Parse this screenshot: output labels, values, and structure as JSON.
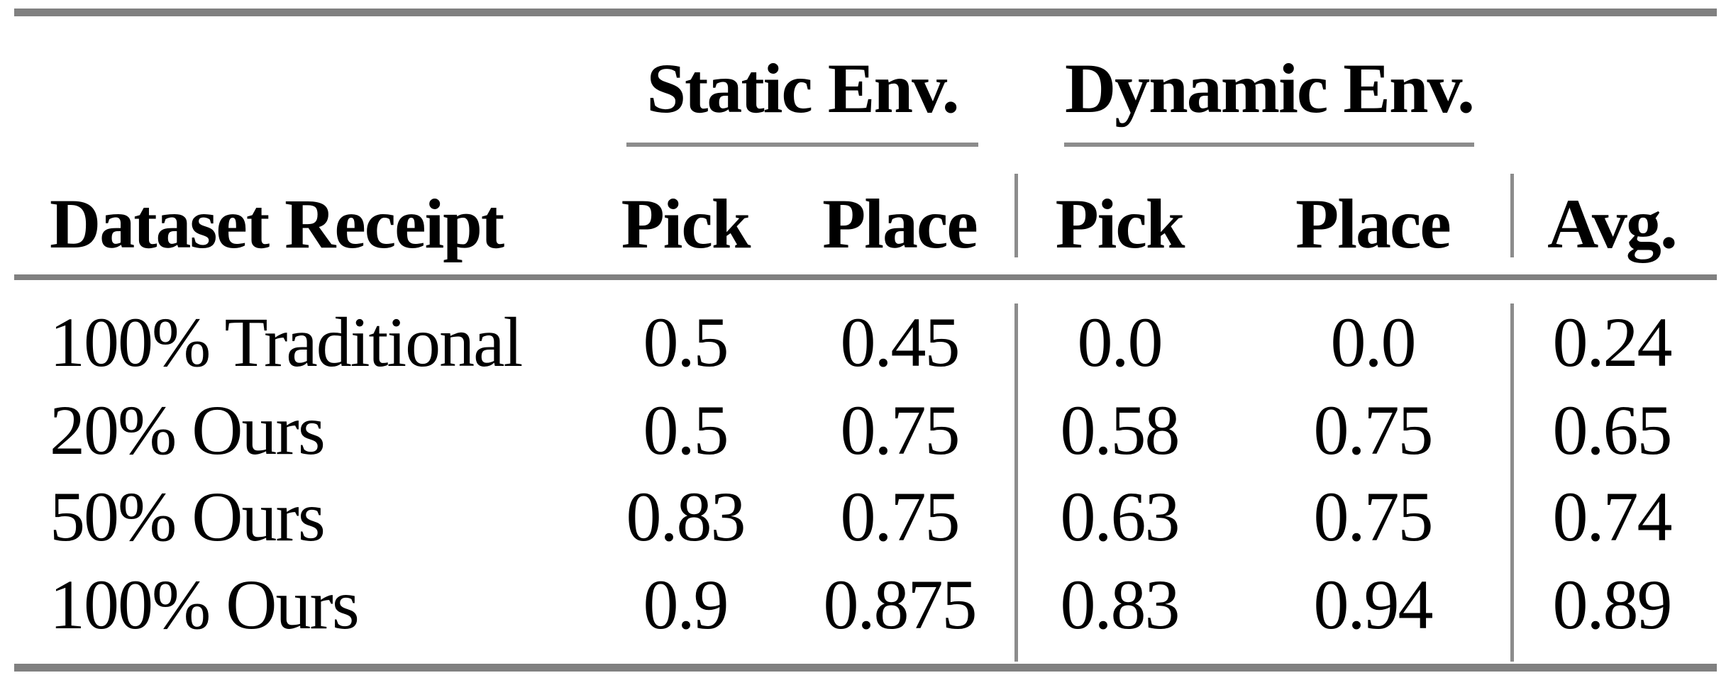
{
  "colors": {
    "background": "#ffffff",
    "text": "#000000",
    "rule_thick": "#808080",
    "rule_thin": "#8c8c8c"
  },
  "table": {
    "row_header_label": "Dataset Receipt",
    "groups": [
      {
        "label": "Static Env.",
        "sub_columns": [
          "Pick",
          "Place"
        ]
      },
      {
        "label": "Dynamic Env.",
        "sub_columns": [
          "Pick",
          "Place"
        ]
      }
    ],
    "avg_label": "Avg.",
    "rows": [
      {
        "label": "100% Traditional",
        "values": [
          "0.5",
          "0.45",
          "0.0",
          "0.0",
          "0.24"
        ]
      },
      {
        "label": "20% Ours",
        "values": [
          "0.5",
          "0.75",
          "0.58",
          "0.75",
          "0.65"
        ]
      },
      {
        "label": "50% Ours",
        "values": [
          "0.83",
          "0.75",
          "0.63",
          "0.75",
          "0.74"
        ]
      },
      {
        "label": "100% Ours",
        "values": [
          "0.9",
          "0.875",
          "0.83",
          "0.94",
          "0.89"
        ]
      }
    ]
  },
  "chart_data": {
    "type": "table",
    "columns": [
      "Dataset Receipt",
      "Static Env. Pick",
      "Static Env. Place",
      "Dynamic Env. Pick",
      "Dynamic Env. Place",
      "Avg."
    ],
    "rows": [
      [
        "100% Traditional",
        0.5,
        0.45,
        0.0,
        0.0,
        0.24
      ],
      [
        "20% Ours",
        0.5,
        0.75,
        0.58,
        0.75,
        0.65
      ],
      [
        "50% Ours",
        0.83,
        0.75,
        0.63,
        0.75,
        0.74
      ],
      [
        "100% Ours",
        0.9,
        0.875,
        0.83,
        0.94,
        0.89
      ]
    ]
  }
}
